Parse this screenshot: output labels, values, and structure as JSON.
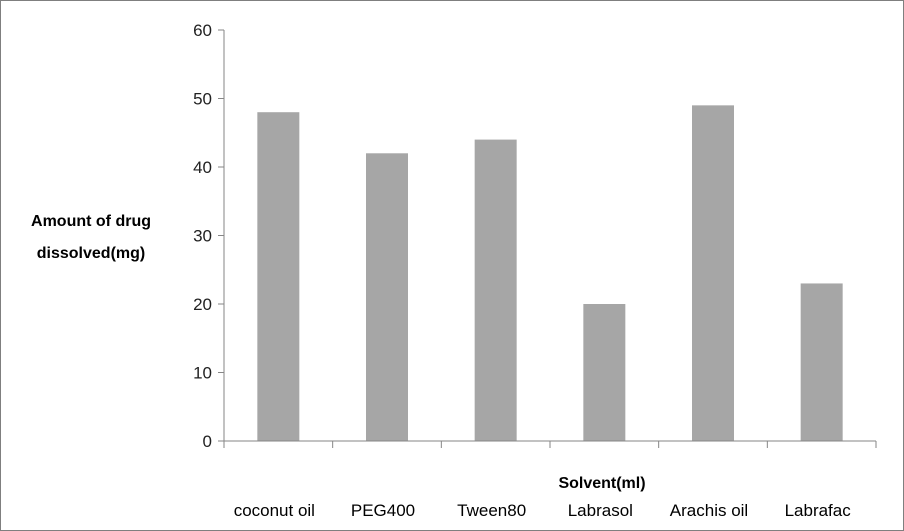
{
  "chart_data": {
    "type": "bar",
    "categories": [
      "coconut oil",
      "PEG400",
      "Tween80",
      "Labrasol",
      "Arachis oil",
      "Labrafac"
    ],
    "values": [
      48,
      42,
      44,
      20,
      49,
      23
    ],
    "xlabel": "Solvent(ml)",
    "ylabel_lines": [
      "Amount of drug",
      "dissolved(mg)"
    ],
    "ylim": [
      0,
      60
    ],
    "yticks": [
      0,
      10,
      20,
      30,
      40,
      50,
      60
    ],
    "grid": false,
    "legend": "none",
    "bar_color": "#a6a6a6",
    "axis_color": "#868686"
  }
}
